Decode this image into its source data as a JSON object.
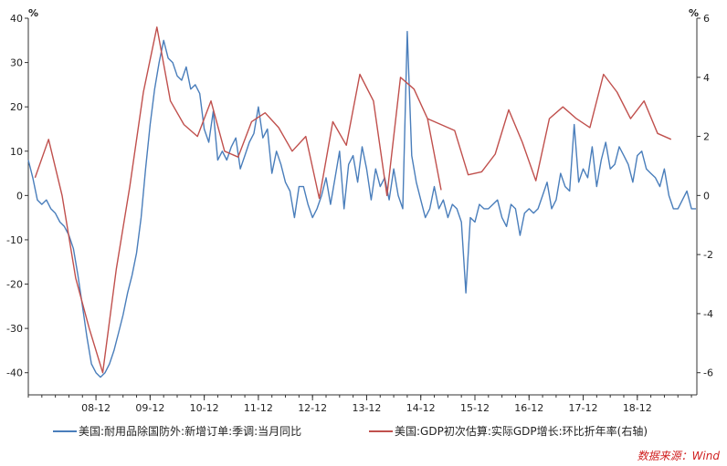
{
  "chart_data": {
    "type": "line",
    "left_axis": {
      "unit": "%",
      "ylim": [
        -45,
        40
      ],
      "ticks": [
        40,
        30,
        20,
        10,
        0,
        -10,
        -20,
        -30,
        -40
      ]
    },
    "right_axis": {
      "unit": "%",
      "ylim": [
        -6.75,
        6
      ],
      "ticks": [
        6,
        4,
        2,
        0,
        -2,
        -4,
        -6
      ]
    },
    "xlim": [
      2007.25,
      2019.6
    ],
    "x_ticks": [
      {
        "label": "08-12",
        "x": 2008.5
      },
      {
        "label": "09-12",
        "x": 2009.5
      },
      {
        "label": "10-12",
        "x": 2010.5
      },
      {
        "label": "11-12",
        "x": 2011.5
      },
      {
        "label": "12-12",
        "x": 2012.5
      },
      {
        "label": "13-12",
        "x": 2013.5
      },
      {
        "label": "14-12",
        "x": 2014.5
      },
      {
        "label": "15-12",
        "x": 2015.5
      },
      {
        "label": "16-12",
        "x": 2016.5
      },
      {
        "label": "17-12",
        "x": 2017.5
      },
      {
        "label": "18-12",
        "x": 2018.5
      }
    ],
    "series": [
      {
        "name": "美国:耐用品除国防外:新增订单:季调:当月同比",
        "axis": "left",
        "color": "#4a7ebb",
        "x_start": 2007.25,
        "x_step": 0.0833333,
        "values": [
          8,
          4,
          -1,
          -2,
          -1,
          -3,
          -4,
          -6,
          -7,
          -9,
          -12,
          -18,
          -25,
          -32,
          -38,
          -40,
          -41,
          -40,
          -38,
          -35,
          -31,
          -27,
          -22,
          -18,
          -13,
          -5,
          6,
          16,
          24,
          30,
          35,
          31,
          30,
          27,
          26,
          29,
          24,
          25,
          23,
          15,
          12,
          19,
          8,
          10,
          8,
          11,
          13,
          6,
          9,
          12,
          14,
          20,
          13,
          15,
          5,
          10,
          7,
          3,
          1,
          -5,
          2,
          2,
          -2,
          -5,
          -3,
          0,
          4,
          -2,
          4,
          10,
          -3,
          7,
          9,
          3,
          11,
          6,
          -1,
          6,
          2,
          4,
          -1,
          6,
          0,
          -3,
          37,
          9,
          3,
          -1,
          -5,
          -3,
          2,
          -3,
          -1,
          -5,
          -2,
          -3,
          -6,
          -22,
          -5,
          -6,
          -2,
          -3,
          -3,
          -2,
          -1,
          -5,
          -7,
          -2,
          -3,
          -9,
          -4,
          -3,
          -4,
          -3,
          0,
          3,
          -3,
          -1,
          5,
          2,
          1,
          16,
          3,
          6,
          4,
          11,
          2,
          8,
          12,
          6,
          7,
          11,
          9,
          7,
          3,
          9,
          10,
          6,
          5,
          4,
          2,
          6,
          0,
          -3,
          -3,
          -1,
          1,
          -3,
          -3
        ]
      },
      {
        "name": "美国:GDP初次估算:实际GDP增长:环比折年率(右轴)",
        "axis": "right",
        "color": "#c0504d",
        "points": [
          [
            2007.375,
            0.6
          ],
          [
            2007.625,
            1.9
          ],
          [
            2007.875,
            0
          ],
          [
            2008.125,
            -2.8
          ],
          [
            2008.375,
            -4.5
          ],
          [
            2008.625,
            -6
          ],
          [
            2008.875,
            -2.5
          ],
          [
            2009.125,
            0.3
          ],
          [
            2009.375,
            3.5
          ],
          [
            2009.625,
            5.7
          ],
          [
            2009.875,
            3.2
          ],
          [
            2010.125,
            2.4
          ],
          [
            2010.375,
            2
          ],
          [
            2010.625,
            3.2
          ],
          [
            2010.875,
            1.5
          ],
          [
            2011.125,
            1.3
          ],
          [
            2011.375,
            2.5
          ],
          [
            2011.625,
            2.8
          ],
          [
            2011.875,
            2.3
          ],
          [
            2012.125,
            1.5
          ],
          [
            2012.375,
            2
          ],
          [
            2012.625,
            -0.1
          ],
          [
            2012.875,
            2.5
          ],
          [
            2013.125,
            1.7
          ],
          [
            2013.375,
            4.1
          ],
          [
            2013.625,
            3.2
          ],
          [
            2013.875,
            0
          ],
          [
            2014.125,
            4
          ],
          [
            2014.375,
            3.6
          ],
          [
            2014.625,
            2.6
          ],
          [
            2014.875,
            0.2
          ],
          [
            2014.625,
            2.6
          ],
          [
            2015.125,
            2.2
          ],
          [
            2015.375,
            0.7
          ],
          [
            2015.625,
            0.8
          ],
          [
            2015.875,
            1.4
          ],
          [
            2016.125,
            2.9
          ],
          [
            2016.375,
            1.8
          ],
          [
            2016.625,
            0.5
          ],
          [
            2016.875,
            2.6
          ],
          [
            2017.125,
            3
          ],
          [
            2017.375,
            2.6
          ],
          [
            2017.625,
            2.3
          ],
          [
            2017.875,
            4.1
          ],
          [
            2018.125,
            3.5
          ],
          [
            2018.375,
            2.6
          ],
          [
            2018.625,
            3.2
          ],
          [
            2018.875,
            2.1
          ],
          [
            2019.125,
            1.9
          ]
        ]
      }
    ]
  },
  "source_label": "数据来源：Wind"
}
